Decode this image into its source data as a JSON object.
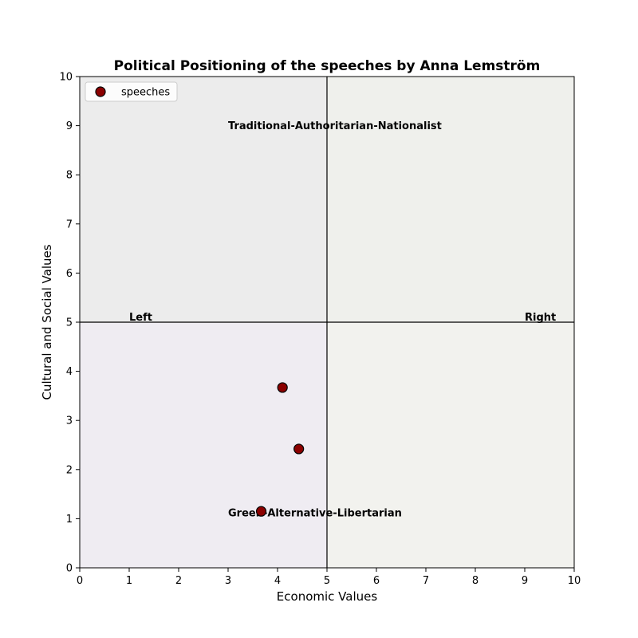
{
  "chart_data": {
    "type": "scatter",
    "title": "Political Positioning of the speeches by Anna Lemström",
    "xlabel": "Economic Values",
    "ylabel": "Cultural and Social Values",
    "xlim": [
      0,
      10
    ],
    "ylim": [
      0,
      10
    ],
    "xticks": [
      "0",
      "1",
      "2",
      "3",
      "4",
      "5",
      "6",
      "7",
      "8",
      "9",
      "10"
    ],
    "yticks": [
      "0",
      "1",
      "2",
      "3",
      "4",
      "5",
      "6",
      "7",
      "8",
      "9",
      "10"
    ],
    "grid": false,
    "legend": {
      "position": "upper-left",
      "entries": [
        "speeches"
      ]
    },
    "series": [
      {
        "name": "speeches",
        "color": "#8b0000",
        "edge_color": "#000000",
        "points": [
          {
            "x": 4.1,
            "y": 3.67
          },
          {
            "x": 4.43,
            "y": 2.42
          },
          {
            "x": 3.67,
            "y": 1.15
          }
        ]
      }
    ],
    "quadrants": {
      "top_left_color": "#ececec",
      "top_right_color": "#eff0ec",
      "bottom_left_color": "#efecf2",
      "bottom_right_color": "#f2f2ee"
    },
    "reference_lines": {
      "vertical_x": 5,
      "horizontal_y": 5
    },
    "annotations": [
      {
        "text": "Traditional-Authoritarian-Nationalist",
        "x": 3,
        "y": 9
      },
      {
        "text": "Green-Alternative-Libertarian",
        "x": 3,
        "y": 1
      },
      {
        "text": "Left",
        "x": 1,
        "y": 5
      },
      {
        "text": "Right",
        "x": 9,
        "y": 5
      }
    ]
  }
}
